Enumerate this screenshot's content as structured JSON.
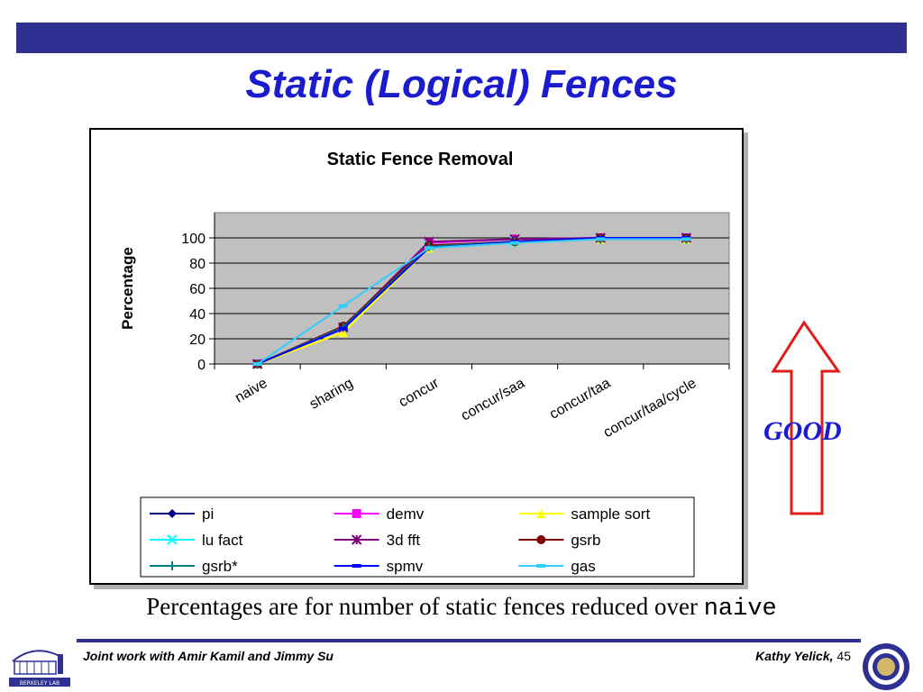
{
  "slide": {
    "title": "Static (Logical) Fences",
    "good_label": "GOOD",
    "caption_text": "Percentages are for number of static fences reduced over ",
    "caption_code": "naive",
    "footer_left": "Joint work with Amir Kamil and Jimmy Su",
    "footer_author": "Kathy Yelick,",
    "footer_page": "45",
    "logo_left_text": "BERKELEY LAB"
  },
  "colors": {
    "brand_blue": "#2e3192",
    "title_blue": "#1c1ccf",
    "arrow_red": "#e21b1b",
    "plot_bg": "#c0c0c0"
  },
  "chart_data": {
    "type": "line",
    "title": "Static Fence Removal",
    "xlabel": "",
    "ylabel": "Percentage",
    "categories": [
      "naive",
      "sharing",
      "concur",
      "concur/saa",
      "concur/taa",
      "concur/taa/cycle"
    ],
    "ylim": [
      0,
      120
    ],
    "yticks": [
      0,
      20,
      40,
      60,
      80,
      100
    ],
    "grid": true,
    "legend_position": "bottom",
    "series": [
      {
        "name": "pi",
        "color": "#000080",
        "marker": "diamond",
        "values": [
          0,
          29,
          93,
          97,
          100,
          100
        ]
      },
      {
        "name": "demv",
        "color": "#ff00ff",
        "marker": "square",
        "values": [
          0,
          29,
          96,
          99,
          100,
          100
        ]
      },
      {
        "name": "sample sort",
        "color": "#ffff00",
        "marker": "triangle",
        "values": [
          0,
          25,
          92,
          97,
          99,
          99
        ]
      },
      {
        "name": "lu fact",
        "color": "#00ffff",
        "marker": "x",
        "values": [
          0,
          29,
          94,
          97,
          100,
          100
        ]
      },
      {
        "name": "3d fft",
        "color": "#800080",
        "marker": "star",
        "values": [
          0,
          29,
          97,
          99,
          100,
          100
        ]
      },
      {
        "name": "gsrb",
        "color": "#800000",
        "marker": "circle",
        "values": [
          0,
          30,
          94,
          97,
          100,
          100
        ]
      },
      {
        "name": "gsrb*",
        "color": "#008080",
        "marker": "plus",
        "values": [
          0,
          29,
          93,
          97,
          99,
          99
        ]
      },
      {
        "name": "spmv",
        "color": "#0000ff",
        "marker": "dash",
        "values": [
          0,
          28,
          92,
          97,
          100,
          100
        ]
      },
      {
        "name": "gas",
        "color": "#33ccff",
        "marker": "dash",
        "values": [
          0,
          46,
          92,
          96,
          99,
          99
        ]
      }
    ]
  }
}
